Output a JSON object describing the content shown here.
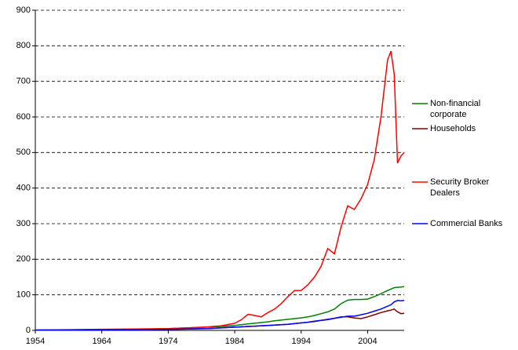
{
  "chart_data": {
    "type": "line",
    "x": [
      1954,
      1959,
      1964,
      1969,
      1974,
      1977,
      1980,
      1982,
      1984,
      1985,
      1986,
      1987,
      1988,
      1989,
      1990,
      1991,
      1992,
      1993,
      1994,
      1995,
      1996,
      1997,
      1998,
      1999,
      2000,
      2001,
      2002,
      2003,
      2004,
      2005,
      2006,
      2007,
      2007.5,
      2008,
      2008.5,
      2009,
      2009.5
    ],
    "series": [
      {
        "name": "Non-financial corporate",
        "color": "#008000",
        "values": [
          1,
          1.5,
          2,
          3,
          5,
          7,
          9,
          11,
          14,
          16,
          18,
          20,
          22,
          24,
          27,
          29,
          31,
          33,
          35,
          38,
          42,
          47,
          52,
          60,
          75,
          85,
          87,
          87,
          88,
          95,
          103,
          112,
          116,
          120,
          121,
          122,
          123
        ]
      },
      {
        "name": "Households",
        "color": "#800000",
        "values": [
          0.5,
          1,
          1.5,
          2,
          3,
          4,
          5,
          7,
          9,
          10,
          11,
          12,
          13,
          14,
          15,
          16,
          17,
          19,
          21,
          23,
          25,
          28,
          30,
          34,
          38,
          38,
          35,
          33,
          38,
          44,
          50,
          55,
          57,
          60,
          52,
          47,
          48
        ]
      },
      {
        "name": "Security Broker Dealers",
        "color": "#ff0000",
        "values": [
          1,
          2,
          3,
          4,
          5,
          7,
          10,
          13,
          20,
          30,
          45,
          42,
          38,
          50,
          60,
          75,
          95,
          112,
          112,
          128,
          150,
          180,
          230,
          215,
          290,
          350,
          340,
          370,
          410,
          480,
          600,
          760,
          785,
          720,
          470,
          490,
          500
        ]
      },
      {
        "name": "Commercial Banks",
        "color": "#0000ff",
        "values": [
          0.5,
          1,
          1.5,
          2,
          3,
          4,
          5,
          7,
          9,
          10,
          11,
          12,
          13,
          14,
          15,
          16,
          17,
          19,
          21,
          23,
          26,
          28,
          31,
          34,
          37,
          40,
          40,
          44,
          48,
          54,
          60,
          68,
          72,
          80,
          84,
          83,
          84
        ]
      }
    ],
    "xlim": [
      1954,
      2009.5
    ],
    "xticks": [
      1954,
      1964,
      1974,
      1984,
      1994,
      2004
    ],
    "ylim": [
      0,
      900
    ],
    "yticks": [
      0,
      100,
      200,
      300,
      400,
      500,
      600,
      700,
      800,
      900
    ],
    "grid": true
  }
}
